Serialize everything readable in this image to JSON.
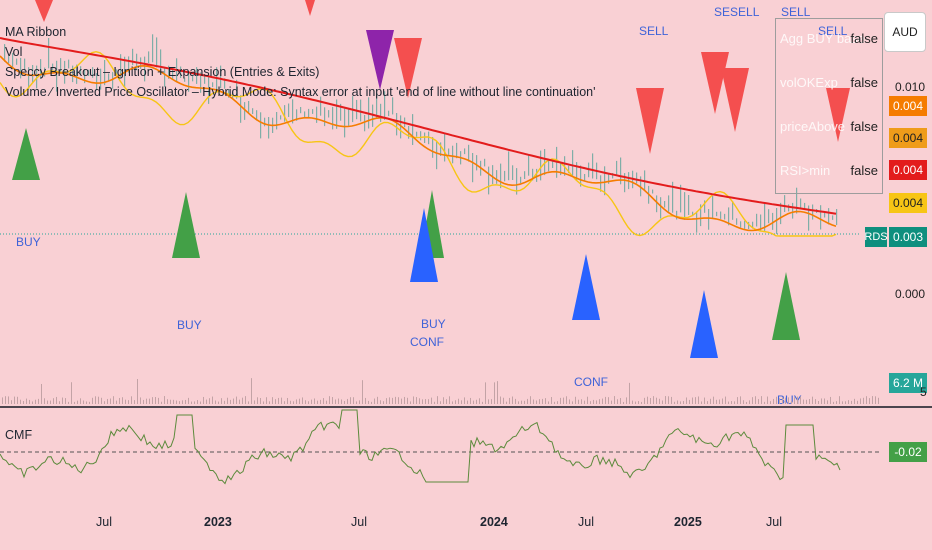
{
  "indicators": {
    "ma_ribbon": "MA Ribbon",
    "vol": "Vol",
    "speccy": "Speccy Breakout – Ignition + Expansion (Entries & Exits)",
    "oscillator": "Volume ⁄ Inverted Price Oscillator – Hybrid Mode: Syntax error at input 'end of line without line continuation'"
  },
  "currency": "AUD",
  "status_table": [
    {
      "label": "Agg BUY base",
      "value": "false"
    },
    {
      "label": "volOKExp",
      "value": "false"
    },
    {
      "label": "priceAbove",
      "value": "false"
    },
    {
      "label": "RSI>min",
      "value": "false"
    }
  ],
  "price_scale": {
    "top_label": "0.010",
    "zero_label": "0.000",
    "tags": [
      {
        "value": "0.004",
        "bg": "#f57c00",
        "fg": "#ffffff",
        "top": 96
      },
      {
        "value": "0.004",
        "bg": "#ef9c1a",
        "fg": "#222222",
        "top": 128
      },
      {
        "value": "0.004",
        "bg": "#e31c1c",
        "fg": "#ffffff",
        "top": 160
      },
      {
        "value": "0.004",
        "bg": "#f7c515",
        "fg": "#222222",
        "top": 193
      }
    ],
    "rds_label": "RDS",
    "rds_value": "0.003",
    "volume_value": "6.2 M",
    "volume_suffix": "5"
  },
  "signals": {
    "sell": "SELL",
    "buy": "BUY",
    "conf": "CONF",
    "sesell": "SESELL"
  },
  "cmf": {
    "title": "CMF",
    "value": "-0.02"
  },
  "x_axis": [
    {
      "label": "Jul",
      "year": false
    },
    {
      "label": "2023",
      "year": true
    },
    {
      "label": "Jul",
      "year": false
    },
    {
      "label": "2024",
      "year": true
    },
    {
      "label": "Jul",
      "year": false
    },
    {
      "label": "2025",
      "year": true
    },
    {
      "label": "Jul",
      "year": false
    }
  ],
  "colors": {
    "background": "#f9d0d4",
    "ma_fast": "#f7c515",
    "ma_mid": "#f57c00",
    "ma_slow": "#e31c1c",
    "buy_triangle": "#43a047",
    "sell_triangle": "#f44f4f",
    "blue_triangle": "#2962ff",
    "purple_triangle": "#8e24aa",
    "cmf_line": "#5c8a3c",
    "candles": "#6aa8a0"
  }
}
